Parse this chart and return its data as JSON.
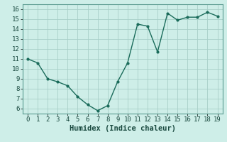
{
  "x": [
    0,
    1,
    2,
    3,
    4,
    5,
    6,
    7,
    8,
    9,
    10,
    11,
    12,
    13,
    14,
    15,
    16,
    17,
    18,
    19
  ],
  "y": [
    11.0,
    10.6,
    9.0,
    8.7,
    8.3,
    7.2,
    6.4,
    5.8,
    6.3,
    8.7,
    10.6,
    14.5,
    14.3,
    11.7,
    15.6,
    14.9,
    15.2,
    15.2,
    15.7,
    15.3
  ],
  "line_color": "#1a6b5a",
  "bg_color": "#ceeee8",
  "grid_color": "#a8cfc8",
  "xlabel": "Humidex (Indice chaleur)",
  "xlim": [
    -0.5,
    19.5
  ],
  "ylim": [
    5.5,
    16.5
  ],
  "yticks": [
    6,
    7,
    8,
    9,
    10,
    11,
    12,
    13,
    14,
    15,
    16
  ],
  "xticks": [
    0,
    1,
    2,
    3,
    4,
    5,
    6,
    7,
    8,
    9,
    10,
    11,
    12,
    13,
    14,
    15,
    16,
    17,
    18,
    19
  ],
  "marker": "o",
  "marker_size": 2.0,
  "line_width": 1.0,
  "xlabel_fontsize": 7.5,
  "tick_fontsize": 6.5
}
